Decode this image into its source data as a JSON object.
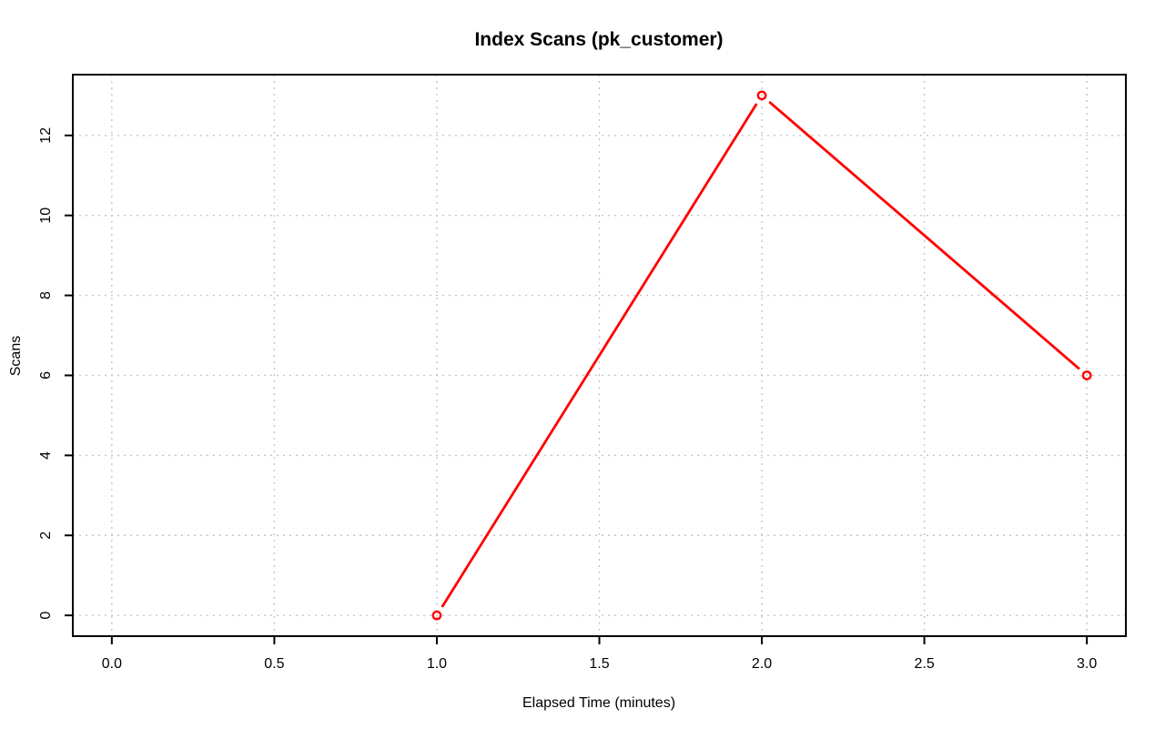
{
  "chart_data": {
    "type": "line",
    "title": "Index Scans (pk_customer)",
    "xlabel": "Elapsed Time (minutes)",
    "ylabel": "Scans",
    "series": [
      {
        "x": [
          1.0,
          2.0,
          3.0
        ],
        "y": [
          0,
          13,
          6
        ]
      }
    ],
    "xlim": [
      0.0,
      3.0
    ],
    "ylim": [
      0,
      13
    ],
    "x_ticks": [
      0.0,
      0.5,
      1.0,
      1.5,
      2.0,
      2.5,
      3.0
    ],
    "x_tick_labels": [
      "0.0",
      "0.5",
      "1.0",
      "1.5",
      "2.0",
      "2.5",
      "3.0"
    ],
    "y_ticks": [
      0,
      2,
      4,
      6,
      8,
      10,
      12
    ],
    "y_tick_labels": [
      "0",
      "2",
      "4",
      "6",
      "8",
      "10",
      "12"
    ],
    "grid": "dotted",
    "grid_on": true,
    "legend_position": "none",
    "point_style": "open-circle",
    "line_type": "segments-with-point-gaps",
    "colors": {
      "line": "#ff0000",
      "point": "#ff0000",
      "grid": "#c6c6c6",
      "axis": "#000000",
      "text": "#000000",
      "background": "#ffffff"
    }
  }
}
